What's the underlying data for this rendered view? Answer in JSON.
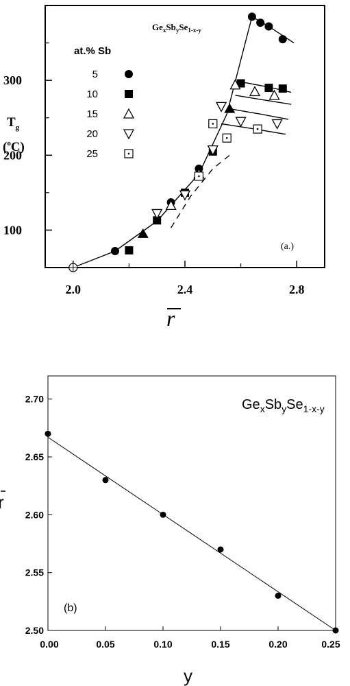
{
  "chart_data": [
    {
      "type": "scatter",
      "panel_label": "(a.)",
      "title": "GexSbySe1-x-y",
      "title_parts": {
        "ge": "Ge",
        "x": "x",
        "sb": "Sb",
        "y": "y",
        "se": "Se",
        "sub": "1-x-y"
      },
      "xlabel": "r",
      "ylabel": "Tg",
      "ylabel_main": "T",
      "ylabel_sub": "g",
      "ylabel_unit": "(°C)",
      "ylabel_unit_parts": {
        "open": "(",
        "deg": "o",
        "c": "C)"
      },
      "xlim": [
        1.9,
        2.9
      ],
      "ylim": [
        50,
        400
      ],
      "xticks": [
        2.0,
        2.4,
        2.8
      ],
      "xtick_labels": [
        "2.0",
        "2.4",
        "2.8"
      ],
      "yticks": [
        100,
        200,
        300
      ],
      "ytick_labels": [
        "100",
        "200",
        "300"
      ],
      "legend": {
        "title": "at.% Sb",
        "entries": [
          {
            "label": "5",
            "marker": "filled-circle"
          },
          {
            "label": "10",
            "marker": "filled-square"
          },
          {
            "label": "15",
            "marker": "open-triangle-up"
          },
          {
            "label": "20",
            "marker": "open-triangle-down"
          },
          {
            "label": "25",
            "marker": "open-square-dot"
          }
        ]
      },
      "series": [
        {
          "name": "5",
          "marker": "filled-circle",
          "x": [
            2.15,
            2.35,
            2.45,
            2.64,
            2.67,
            2.7,
            2.75
          ],
          "y": [
            72,
            137,
            182,
            385,
            377,
            372,
            355
          ]
        },
        {
          "name": "10",
          "marker": "filled-square",
          "x": [
            2.2,
            2.3,
            2.4,
            2.5,
            2.6,
            2.7,
            2.75
          ],
          "y": [
            73,
            113,
            150,
            205,
            296,
            290,
            289
          ]
        },
        {
          "name": "15",
          "marker": "open-triangle-up",
          "x": [
            2.35,
            2.45,
            2.58,
            2.65,
            2.72
          ],
          "y": [
            133,
            175,
            294,
            285,
            280
          ]
        },
        {
          "name": "20",
          "marker": "open-triangle-down",
          "x": [
            2.3,
            2.4,
            2.5,
            2.53,
            2.6,
            2.73
          ],
          "y": [
            122,
            147,
            207,
            265,
            245,
            242
          ]
        },
        {
          "name": "25",
          "marker": "open-square-dot",
          "x": [
            2.45,
            2.5,
            2.55,
            2.66
          ],
          "y": [
            172,
            242,
            223,
            235
          ]
        },
        {
          "name": "",
          "marker": "filled-triangle-up",
          "x": [
            2.25,
            2.56
          ],
          "y": [
            95,
            262
          ]
        },
        {
          "name": "",
          "marker": "crossed-circle",
          "x": [
            2.0
          ],
          "y": [
            50
          ]
        }
      ],
      "lines": [
        {
          "style": "solid",
          "x": [
            2.0,
            2.15,
            2.3,
            2.45,
            2.55,
            2.64
          ],
          "y": [
            50,
            72,
            112,
            175,
            255,
            385
          ]
        },
        {
          "style": "solid",
          "x": [
            2.64,
            2.7,
            2.79
          ],
          "y": [
            385,
            372,
            350
          ]
        },
        {
          "style": "solid",
          "x": [
            2.6,
            2.7,
            2.78
          ],
          "y": [
            298,
            291,
            284
          ]
        },
        {
          "style": "solid",
          "x": [
            2.58,
            2.68,
            2.78
          ],
          "y": [
            280,
            274,
            268
          ]
        },
        {
          "style": "solid",
          "x": [
            2.56,
            2.67,
            2.77
          ],
          "y": [
            262,
            255,
            248
          ]
        },
        {
          "style": "solid",
          "x": [
            2.53,
            2.65,
            2.76
          ],
          "y": [
            242,
            235,
            228
          ]
        },
        {
          "style": "dashed",
          "x": [
            2.35,
            2.42,
            2.5,
            2.56
          ],
          "y": [
            103,
            145,
            182,
            200
          ]
        }
      ]
    },
    {
      "type": "scatter",
      "panel_label": "(b)",
      "title": "GexSbySe1-x-y",
      "title_parts": {
        "ge": "Ge",
        "x": "x",
        "sb": "Sb",
        "y": "y",
        "se": "Se",
        "sub": "1-x-y"
      },
      "xlabel": "y",
      "ylabel": "r",
      "xlim": [
        0.0,
        0.25
      ],
      "ylim": [
        2.5,
        2.72
      ],
      "xticks": [
        0.0,
        0.05,
        0.1,
        0.15,
        0.2,
        0.25
      ],
      "xtick_labels": [
        "0.00",
        "0.05",
        "0.10",
        "0.15",
        "0.20",
        "0.25"
      ],
      "yticks": [
        2.5,
        2.55,
        2.6,
        2.65,
        2.7
      ],
      "ytick_labels": [
        "2.50",
        "2.55",
        "2.60",
        "2.65",
        "2.70"
      ],
      "series": [
        {
          "name": "",
          "x": [
            0.0,
            0.05,
            0.1,
            0.15,
            0.2,
            0.25
          ],
          "y": [
            2.67,
            2.63,
            2.6,
            2.57,
            2.53,
            2.5
          ]
        }
      ],
      "fit_line": {
        "x": [
          0.0,
          0.25
        ],
        "y": [
          2.667,
          2.5
        ]
      }
    }
  ]
}
